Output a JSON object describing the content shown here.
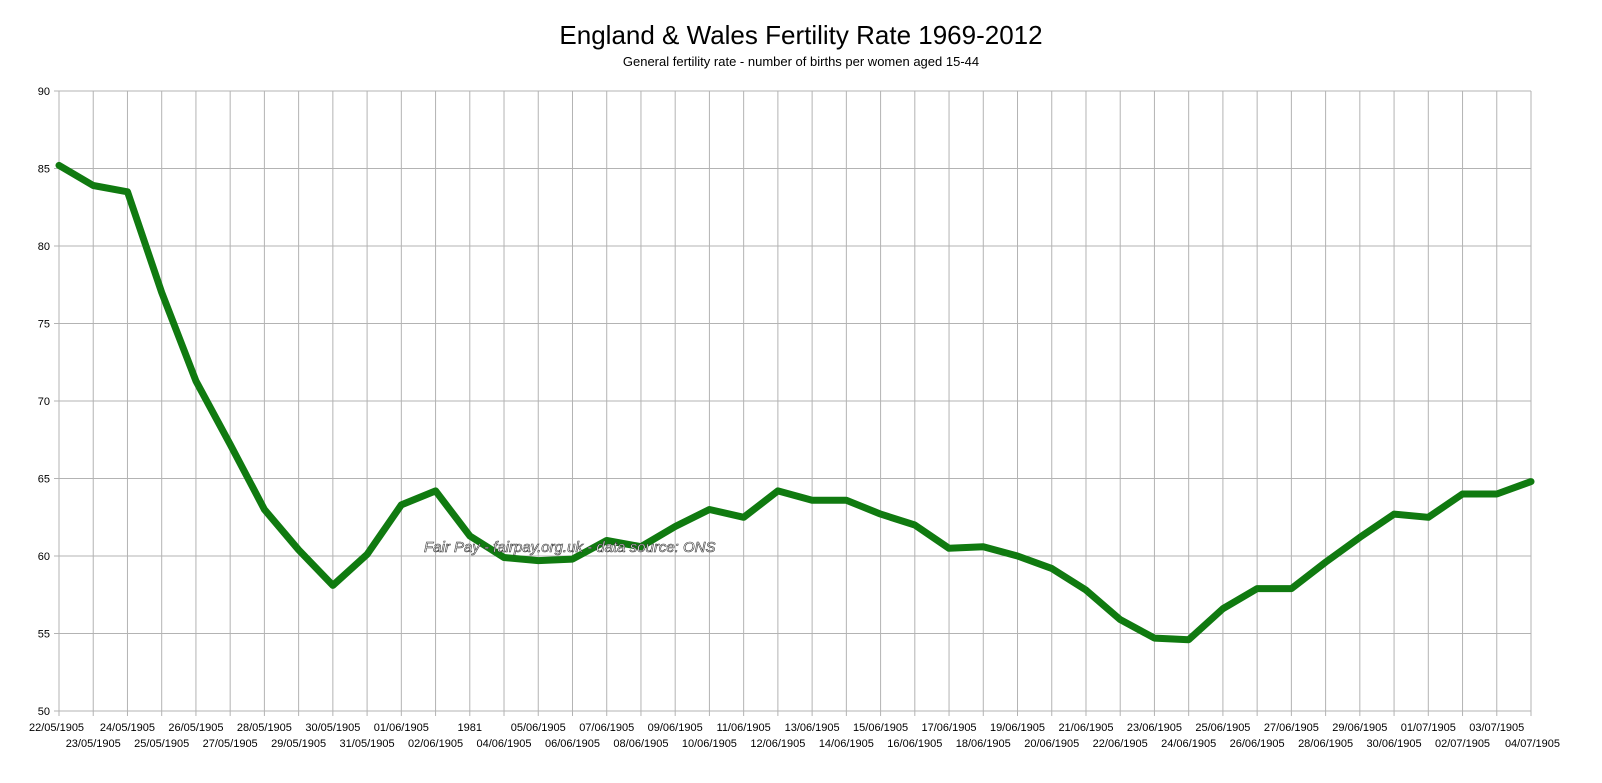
{
  "chart_data": {
    "type": "line",
    "title": "England & Wales Fertility Rate 1969-2012",
    "subtitle": "General fertility rate - number of births per women aged 15-44",
    "xlabel": "",
    "ylabel": "",
    "ylim": [
      50,
      90
    ],
    "yticks": [
      50,
      55,
      60,
      65,
      70,
      75,
      80,
      85,
      90
    ],
    "grid": true,
    "line_color": "#107a10",
    "categories": [
      "22/05/1905",
      "23/05/1905",
      "24/05/1905",
      "25/05/1905",
      "26/05/1905",
      "27/05/1905",
      "28/05/1905",
      "29/05/1905",
      "30/05/1905",
      "31/05/1905",
      "01/06/1905",
      "02/06/1905",
      "1981",
      "04/06/1905",
      "05/06/1905",
      "06/06/1905",
      "07/06/1905",
      "08/06/1905",
      "09/06/1905",
      "10/06/1905",
      "11/06/1905",
      "12/06/1905",
      "13/06/1905",
      "14/06/1905",
      "15/06/1905",
      "16/06/1905",
      "17/06/1905",
      "18/06/1905",
      "19/06/1905",
      "20/06/1905",
      "21/06/1905",
      "22/06/1905",
      "23/06/1905",
      "24/06/1905",
      "25/06/1905",
      "26/06/1905",
      "27/06/1905",
      "28/06/1905",
      "29/06/1905",
      "30/06/1905",
      "01/07/1905",
      "02/07/1905",
      "03/07/1905",
      "04/07/1905"
    ],
    "series": [
      {
        "values": [
          85.2,
          83.9,
          83.5,
          77.0,
          71.3,
          67.2,
          63.0,
          60.4,
          58.1,
          60.1,
          63.3,
          64.2,
          61.3,
          59.9,
          59.7,
          59.8,
          61.0,
          60.6,
          61.9,
          63.0,
          62.5,
          64.2,
          63.6,
          63.6,
          62.7,
          62.0,
          60.5,
          60.6,
          60.0,
          59.2,
          57.8,
          55.9,
          54.7,
          54.6,
          56.6,
          57.9,
          57.9,
          59.6,
          61.2,
          62.7,
          62.5,
          64.0,
          64.0,
          64.8
        ]
      }
    ],
    "watermark": "Fair Pay - fairpay.org.uk - data source: ONS"
  }
}
